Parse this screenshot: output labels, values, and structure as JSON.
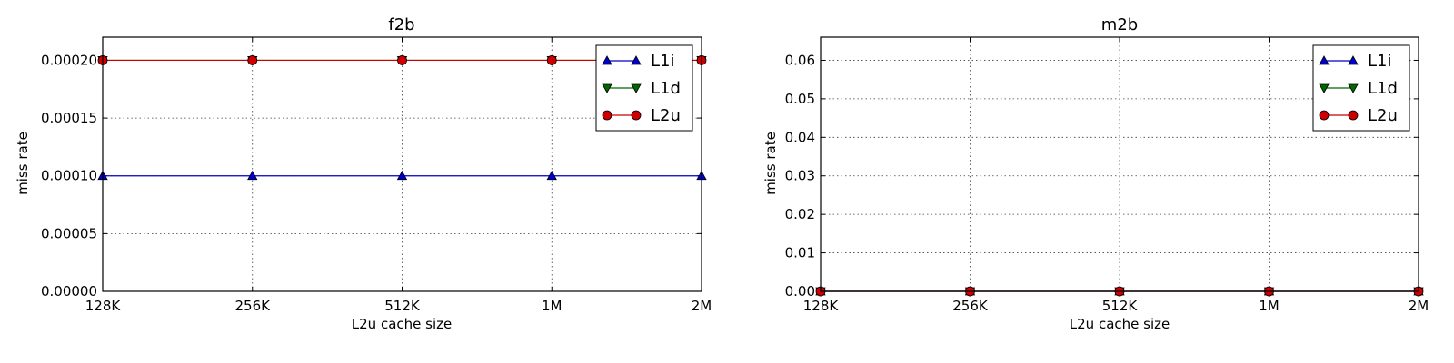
{
  "chart_data": [
    {
      "type": "line",
      "title": "f2b",
      "xlabel": "L2u cache size",
      "ylabel": "miss rate",
      "categories": [
        "128K",
        "256K",
        "512K",
        "1M",
        "2M"
      ],
      "ylim": [
        0,
        0.00022
      ],
      "yticks": [
        "0.00000",
        "0.00005",
        "0.00010",
        "0.00015",
        "0.00020"
      ],
      "ytick_values": [
        0,
        5e-05,
        0.0001,
        0.00015,
        0.0002
      ],
      "grid": true,
      "legend": "top-right",
      "series": [
        {
          "name": "L1i",
          "values": [
            0.0001,
            0.0001,
            0.0001,
            0.0001,
            0.0001
          ],
          "color": "#0000cc",
          "marker": "triangle-up"
        },
        {
          "name": "L1d",
          "values": [
            0.0002,
            0.0002,
            0.0002,
            0.0002,
            0.0002
          ],
          "color": "#006600",
          "marker": "triangle-down"
        },
        {
          "name": "L2u",
          "values": [
            0.0002,
            0.0002,
            0.0002,
            0.0002,
            0.0002
          ],
          "color": "#cc0000",
          "marker": "circle"
        }
      ]
    },
    {
      "type": "line",
      "title": "m2b",
      "xlabel": "L2u cache size",
      "ylabel": "miss rate",
      "categories": [
        "128K",
        "256K",
        "512K",
        "1M",
        "2M"
      ],
      "ylim": [
        0,
        0.066
      ],
      "yticks": [
        "0.00",
        "0.01",
        "0.02",
        "0.03",
        "0.04",
        "0.05",
        "0.06"
      ],
      "ytick_values": [
        0,
        0.01,
        0.02,
        0.03,
        0.04,
        0.05,
        0.06
      ],
      "grid": true,
      "legend": "top-right",
      "series": [
        {
          "name": "L1i",
          "values": [
            0,
            0,
            0,
            0,
            0
          ],
          "color": "#0000cc",
          "marker": "triangle-up"
        },
        {
          "name": "L1d",
          "values": [
            0,
            0,
            0,
            0,
            0
          ],
          "color": "#006600",
          "marker": "triangle-down"
        },
        {
          "name": "L2u",
          "values": [
            0,
            0,
            0,
            0,
            0
          ],
          "color": "#cc0000",
          "marker": "circle"
        }
      ]
    }
  ]
}
